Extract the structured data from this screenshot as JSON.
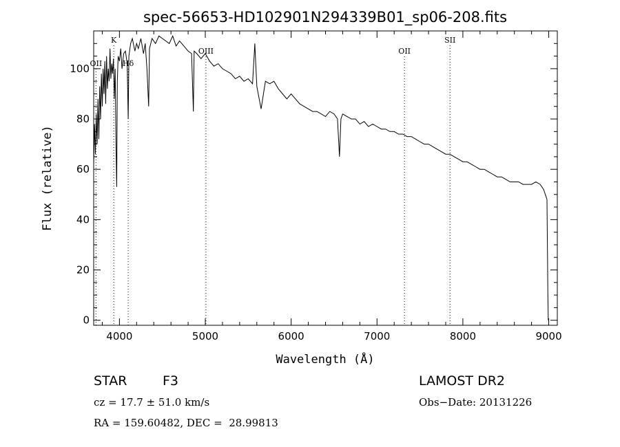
{
  "chart_data": {
    "type": "line",
    "title": "spec-56653-HD102901N294339B01_sp06-208.fits",
    "xlabel": "Wavelength (Å)",
    "ylabel": "Flux (relative)",
    "xlim": [
      3700,
      9100
    ],
    "ylim": [
      -2,
      115
    ],
    "x_ticks": [
      4000,
      5000,
      6000,
      7000,
      8000,
      9000
    ],
    "y_ticks": [
      0,
      20,
      40,
      60,
      80,
      100
    ],
    "grid": false,
    "line_color": "#000000",
    "series": [
      {
        "x": [
          3700,
          3710,
          3720,
          3730,
          3740,
          3750,
          3760,
          3770,
          3780,
          3790,
          3800,
          3810,
          3820,
          3830,
          3840,
          3850,
          3860,
          3870,
          3880,
          3890,
          3900,
          3910,
          3920,
          3930,
          3940,
          3950,
          3960,
          3968,
          3975,
          3985,
          4000,
          4015,
          4030,
          4050,
          4070,
          4090,
          4102,
          4110,
          4130,
          4150,
          4180,
          4200,
          4220,
          4250,
          4280,
          4300,
          4320,
          4340,
          4350,
          4380,
          4420,
          4460,
          4500,
          4540,
          4580,
          4620,
          4660,
          4700,
          4750,
          4800,
          4840,
          4861,
          4870,
          4900,
          4950,
          5000,
          5050,
          5100,
          5150,
          5200,
          5250,
          5300,
          5350,
          5400,
          5450,
          5500,
          5550,
          5577,
          5600,
          5650,
          5700,
          5750,
          5800,
          5850,
          5900,
          5950,
          6000,
          6050,
          6100,
          6150,
          6200,
          6250,
          6300,
          6350,
          6400,
          6450,
          6500,
          6540,
          6563,
          6580,
          6600,
          6650,
          6700,
          6750,
          6800,
          6850,
          6900,
          6950,
          7000,
          7050,
          7100,
          7150,
          7200,
          7250,
          7300,
          7350,
          7400,
          7450,
          7500,
          7550,
          7600,
          7650,
          7700,
          7750,
          7800,
          7850,
          7900,
          7950,
          8000,
          8050,
          8100,
          8150,
          8200,
          8250,
          8300,
          8350,
          8400,
          8450,
          8500,
          8550,
          8600,
          8650,
          8700,
          8750,
          8800,
          8850,
          8900,
          8920,
          8940,
          8960,
          8980,
          8990,
          8995
        ],
        "y": [
          62,
          78,
          66,
          82,
          70,
          88,
          72,
          93,
          80,
          98,
          85,
          100,
          90,
          103,
          86,
          105,
          92,
          100,
          95,
          108,
          96,
          102,
          98,
          104,
          88,
          100,
          70,
          53,
          95,
          105,
          103,
          108,
          100,
          106,
          107,
          102,
          80,
          105,
          110,
          112,
          107,
          110,
          108,
          112,
          106,
          110,
          100,
          85,
          108,
          112,
          110,
          113,
          112,
          111,
          110,
          113,
          109,
          111,
          109,
          107,
          106,
          83,
          107,
          106,
          104,
          106,
          103,
          101,
          102,
          100,
          99,
          98,
          96,
          97,
          95,
          96,
          94,
          110,
          93,
          84,
          95,
          94,
          95,
          92,
          90,
          88,
          90,
          88,
          86,
          85,
          84,
          83,
          83,
          82,
          81,
          83,
          82,
          80,
          65,
          80,
          82,
          81,
          80,
          80,
          78,
          79,
          77,
          78,
          77,
          76,
          76,
          75,
          75,
          74,
          74,
          73,
          73,
          72,
          71,
          70,
          70,
          69,
          68,
          67,
          66,
          66,
          65,
          64,
          63,
          63,
          62,
          61,
          60,
          60,
          59,
          58,
          57,
          57,
          56,
          55,
          55,
          55,
          54,
          54,
          54,
          55,
          54,
          53,
          52,
          50,
          48,
          10,
          0
        ]
      }
    ],
    "annotations": [
      {
        "label": "OII",
        "x": 3727
      },
      {
        "label": "K",
        "x": 3934
      },
      {
        "label": "Hδ",
        "x": 4102
      },
      {
        "label": "OIII",
        "x": 5007
      },
      {
        "label": "OII",
        "x": 7320
      },
      {
        "label": "SII",
        "x": 7850
      }
    ]
  },
  "info": {
    "object_class": "STAR",
    "subclass": "F3",
    "cz": "cz = 17.7 ± 51.0 km/s",
    "coords": "RA = 159.60482, DEC =  28.99813",
    "survey": "LAMOST DR2",
    "obs_date": "Obs−Date: 20131226"
  }
}
